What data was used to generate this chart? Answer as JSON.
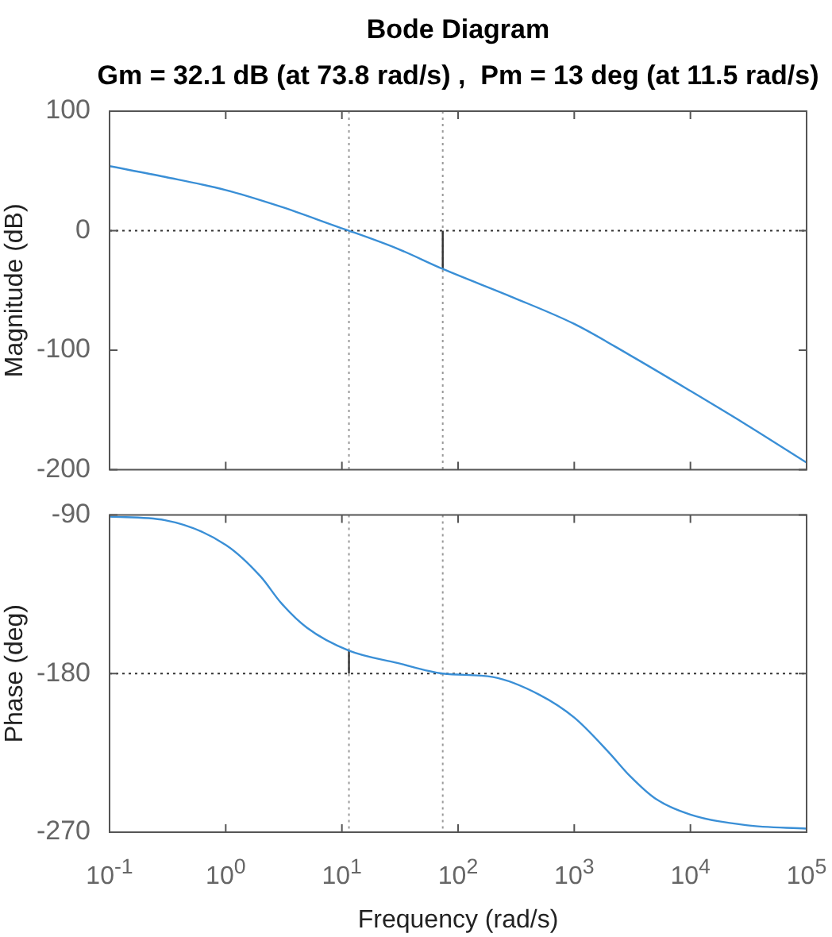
{
  "chart_data": [
    {
      "type": "line",
      "title": "Bode Diagram",
      "subtitle": "Gm = 32.1 dB (at 73.8 rad/s) ,  Pm = 13 deg (at 11.5 rad/s)",
      "ylabel": "Magnitude (dB)",
      "log": "x",
      "grid": false,
      "legend": false,
      "tick_labels": "y",
      "xlim": [
        0.1,
        100000
      ],
      "xticks": [
        {
          "value": 0.1,
          "label": null
        },
        {
          "value": 1,
          "label": null
        },
        {
          "value": 10,
          "label": null
        },
        {
          "value": 100,
          "label": null
        },
        {
          "value": 1000,
          "label": null
        },
        {
          "value": 10000,
          "label": null
        },
        {
          "value": 100000,
          "label": null
        }
      ],
      "ylim": [
        -200,
        100
      ],
      "yticks": [
        -200,
        -100,
        0,
        100
      ],
      "ref_lines": [
        {
          "axis": "y",
          "value": 0,
          "color": "#333333",
          "line_style": "dotted"
        },
        {
          "axis": "x",
          "value": 11.5,
          "color": "#999999",
          "line_style": "dotted"
        },
        {
          "axis": "x",
          "value": 73.8,
          "color": "#999999",
          "line_style": "dotted"
        }
      ],
      "series": [
        {
          "color": "#3a8fd6",
          "x": [
            0.1,
            0.3,
            1,
            3,
            10,
            11.5,
            30,
            73.8,
            300,
            1000,
            3000,
            10000,
            30000,
            100000
          ],
          "values": [
            54,
            45,
            34,
            20,
            2,
            0,
            -15,
            -32,
            -56,
            -78,
            -104,
            -134,
            -162,
            -194
          ]
        },
        {
          "color": "#333333",
          "x": [
            73.8,
            73.8
          ],
          "values": [
            0,
            -32
          ]
        }
      ]
    },
    {
      "type": "line",
      "xlabel": "Frequency (rad/s)",
      "ylabel": "Phase (deg)",
      "log": "x",
      "grid": false,
      "legend": false,
      "xlim": [
        0.1,
        100000
      ],
      "xticks": [
        {
          "value": 0.1,
          "label": "10$^{-1}$"
        },
        {
          "value": 1,
          "label": "10$^{0}$"
        },
        {
          "value": 10,
          "label": "10$^{1}$"
        },
        {
          "value": 100,
          "label": "10$^{2}$"
        },
        {
          "value": 1000,
          "label": "10$^{3}$"
        },
        {
          "value": 10000,
          "label": "10$^{4}$"
        },
        {
          "value": 100000,
          "label": "10$^{5}$"
        }
      ],
      "ylim": [
        -270,
        -90
      ],
      "yticks": [
        -270,
        -180,
        -90
      ],
      "ref_lines": [
        {
          "axis": "y",
          "value": -180,
          "color": "#333333",
          "line_style": "dotted"
        },
        {
          "axis": "x",
          "value": 11.5,
          "color": "#999999",
          "line_style": "dotted"
        },
        {
          "axis": "x",
          "value": 73.8,
          "color": "#999999",
          "line_style": "dotted"
        }
      ],
      "series": [
        {
          "color": "#3a8fd6",
          "x": [
            0.1,
            0.3,
            1,
            2,
            3,
            5,
            11.5,
            30,
            73.8,
            200,
            500,
            1000,
            2000,
            3000,
            5000,
            10000,
            30000,
            100000
          ],
          "values": [
            -91,
            -93,
            -107,
            -125,
            -140,
            -154,
            -167,
            -174,
            -180,
            -182,
            -192,
            -205,
            -225,
            -238,
            -251,
            -260,
            -266,
            -268
          ]
        },
        {
          "color": "#333333",
          "x": [
            11.5,
            11.5
          ],
          "values": [
            -180,
            -167
          ]
        }
      ]
    }
  ]
}
